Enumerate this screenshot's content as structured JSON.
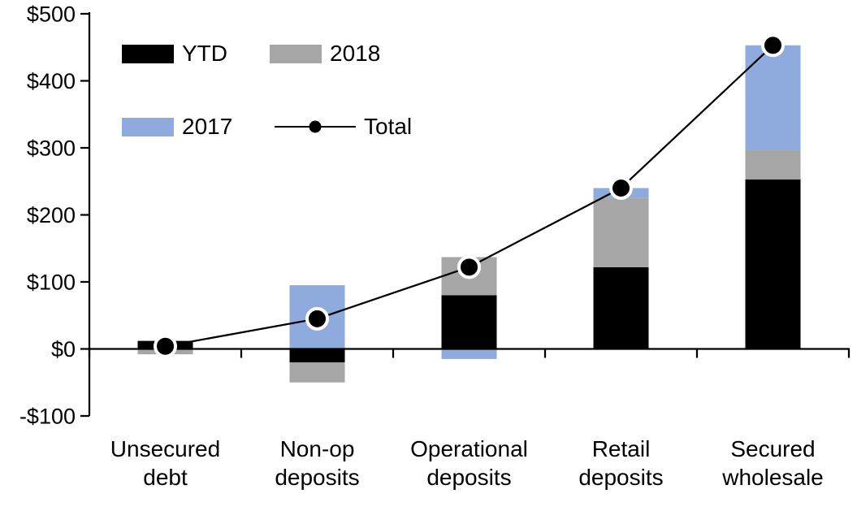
{
  "chart_data": {
    "type": "bar",
    "subtype": "stacked-bar-with-total-line",
    "title": "",
    "xlabel": "",
    "ylabel": "",
    "grid": false,
    "categories": [
      "Unsecured debt",
      "Non-op deposits",
      "Operational deposits",
      "Retail deposits",
      "Secured wholesale"
    ],
    "category_label_lines": [
      [
        "Unsecured",
        "debt"
      ],
      [
        "Non-op",
        "deposits"
      ],
      [
        "Operational",
        "deposits"
      ],
      [
        "Retail",
        "deposits"
      ],
      [
        "Secured",
        "wholesale"
      ]
    ],
    "series": [
      {
        "name": "YTD",
        "type": "bar",
        "color": "#000000",
        "values": [
          12,
          -20,
          80,
          122,
          253
        ]
      },
      {
        "name": "2018",
        "type": "bar",
        "color": "#a6a6a6",
        "values": [
          -8,
          -30,
          57,
          103,
          44
        ]
      },
      {
        "name": "2017",
        "type": "bar",
        "color": "#8faadc",
        "values": [
          0,
          95,
          -15,
          15,
          156
        ]
      },
      {
        "name": "Total",
        "type": "line",
        "color": "#000000",
        "values": [
          4,
          45,
          122,
          240,
          453
        ]
      }
    ],
    "y_axis": {
      "min": -100,
      "max": 500,
      "tick_interval": 100,
      "tick_values": [
        500,
        400,
        300,
        200,
        100,
        0,
        -100
      ],
      "tick_labels": [
        "$500",
        "$400",
        "$300",
        "$200",
        "$100",
        "$0",
        "-$100"
      ]
    },
    "legend_position": "top-left"
  },
  "legend": {
    "ytd": "YTD",
    "y2018": "2018",
    "y2017": "2017",
    "total": "Total"
  },
  "colors": {
    "ytd": "#000000",
    "y2018": "#a6a6a6",
    "y2017": "#8faadc",
    "line": "#000000",
    "marker_fill": "#000000",
    "marker_ring": "#ffffff",
    "axis": "#000000",
    "background": "#ffffff"
  }
}
